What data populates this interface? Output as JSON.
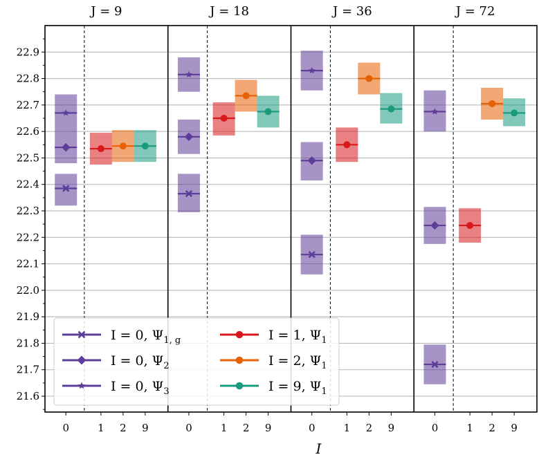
{
  "chart_data": {
    "type": "scatter",
    "xlabel": "I",
    "ylim": [
      21.54,
      23.0
    ],
    "yticks": [
      21.6,
      21.7,
      21.8,
      21.9,
      22.0,
      22.1,
      22.2,
      22.3,
      22.4,
      22.5,
      22.6,
      22.7,
      22.8,
      22.9
    ],
    "ytick_labels": [
      "21.6",
      "21.7",
      "21.8",
      "21.9",
      "22.0",
      "22.1",
      "22.2",
      "22.3",
      "22.4",
      "22.5",
      "22.6",
      "22.7",
      "22.8",
      "22.9"
    ],
    "grid": true,
    "legend_position": "lower-left",
    "series_style": {
      "I0_psi1g": {
        "color": "#5e3c99",
        "marker": "x"
      },
      "I0_psi2": {
        "color": "#5e3c99",
        "marker": "diamond"
      },
      "I0_psi3": {
        "color": "#5e3c99",
        "marker": "star"
      },
      "I1": {
        "color": "#d7191c",
        "marker": "circle"
      },
      "I2": {
        "color": "#e66101",
        "marker": "circle"
      },
      "I9": {
        "color": "#1a9b7f",
        "marker": "circle"
      }
    },
    "legend": [
      {
        "key": "I0_psi1g",
        "label": "I = 0, Ψ",
        "sub": "1, g"
      },
      {
        "key": "I0_psi2",
        "label": "I = 0, Ψ",
        "sub": "2"
      },
      {
        "key": "I0_psi3",
        "label": "I = 0, Ψ",
        "sub": "3"
      },
      {
        "key": "I1",
        "label": "I = 1, Ψ",
        "sub": "1"
      },
      {
        "key": "I2",
        "label": "I = 2, Ψ",
        "sub": "1"
      },
      {
        "key": "I9",
        "label": "I = 9, Ψ",
        "sub": "1"
      }
    ],
    "panels": [
      {
        "title": "J = 9",
        "ticks": [
          "0",
          "1",
          "2",
          "9"
        ],
        "points": [
          {
            "key": "I0_psi3",
            "col": 0,
            "y": 22.67,
            "lo": 22.6,
            "hi": 22.74
          },
          {
            "key": "I0_psi2",
            "col": 0,
            "y": 22.54,
            "lo": 22.48,
            "hi": 22.6
          },
          {
            "key": "I0_psi1g",
            "col": 0,
            "y": 22.385,
            "lo": 22.32,
            "hi": 22.44
          },
          {
            "key": "I1",
            "col": 1,
            "y": 22.535,
            "lo": 22.475,
            "hi": 22.595
          },
          {
            "key": "I2",
            "col": 2,
            "y": 22.545,
            "lo": 22.485,
            "hi": 22.605
          },
          {
            "key": "I9",
            "col": 3,
            "y": 22.545,
            "lo": 22.485,
            "hi": 22.605
          }
        ]
      },
      {
        "title": "J = 18",
        "ticks": [
          "0",
          "1",
          "2",
          "9"
        ],
        "points": [
          {
            "key": "I0_psi3",
            "col": 0,
            "y": 22.815,
            "lo": 22.75,
            "hi": 22.88
          },
          {
            "key": "I0_psi2",
            "col": 0,
            "y": 22.58,
            "lo": 22.515,
            "hi": 22.645
          },
          {
            "key": "I0_psi1g",
            "col": 0,
            "y": 22.365,
            "lo": 22.295,
            "hi": 22.44
          },
          {
            "key": "I1",
            "col": 1,
            "y": 22.65,
            "lo": 22.585,
            "hi": 22.71
          },
          {
            "key": "I2",
            "col": 2,
            "y": 22.735,
            "lo": 22.675,
            "hi": 22.795
          },
          {
            "key": "I9",
            "col": 3,
            "y": 22.675,
            "lo": 22.615,
            "hi": 22.735
          }
        ]
      },
      {
        "title": "J = 36",
        "ticks": [
          "0",
          "1",
          "2",
          "9"
        ],
        "points": [
          {
            "key": "I0_psi3",
            "col": 0,
            "y": 22.83,
            "lo": 22.755,
            "hi": 22.905
          },
          {
            "key": "I0_psi2",
            "col": 0,
            "y": 22.49,
            "lo": 22.415,
            "hi": 22.56
          },
          {
            "key": "I0_psi1g",
            "col": 0,
            "y": 22.135,
            "lo": 22.06,
            "hi": 22.21
          },
          {
            "key": "I1",
            "col": 1,
            "y": 22.55,
            "lo": 22.485,
            "hi": 22.615
          },
          {
            "key": "I2",
            "col": 2,
            "y": 22.8,
            "lo": 22.74,
            "hi": 22.86
          },
          {
            "key": "I9",
            "col": 3,
            "y": 22.685,
            "lo": 22.63,
            "hi": 22.745
          }
        ]
      },
      {
        "title": "J = 72",
        "ticks": [
          "0",
          "1",
          "2",
          "9"
        ],
        "points": [
          {
            "key": "I0_psi3",
            "col": 0,
            "y": 22.675,
            "lo": 22.6,
            "hi": 22.755
          },
          {
            "key": "I0_psi2",
            "col": 0,
            "y": 22.245,
            "lo": 22.175,
            "hi": 22.315
          },
          {
            "key": "I0_psi1g",
            "col": 0,
            "y": 21.72,
            "lo": 21.645,
            "hi": 21.795
          },
          {
            "key": "I1",
            "col": 1,
            "y": 22.245,
            "lo": 22.18,
            "hi": 22.31
          },
          {
            "key": "I2",
            "col": 2,
            "y": 22.705,
            "lo": 22.645,
            "hi": 22.765
          },
          {
            "key": "I9",
            "col": 3,
            "y": 22.67,
            "lo": 22.62,
            "hi": 22.725
          }
        ]
      }
    ]
  }
}
